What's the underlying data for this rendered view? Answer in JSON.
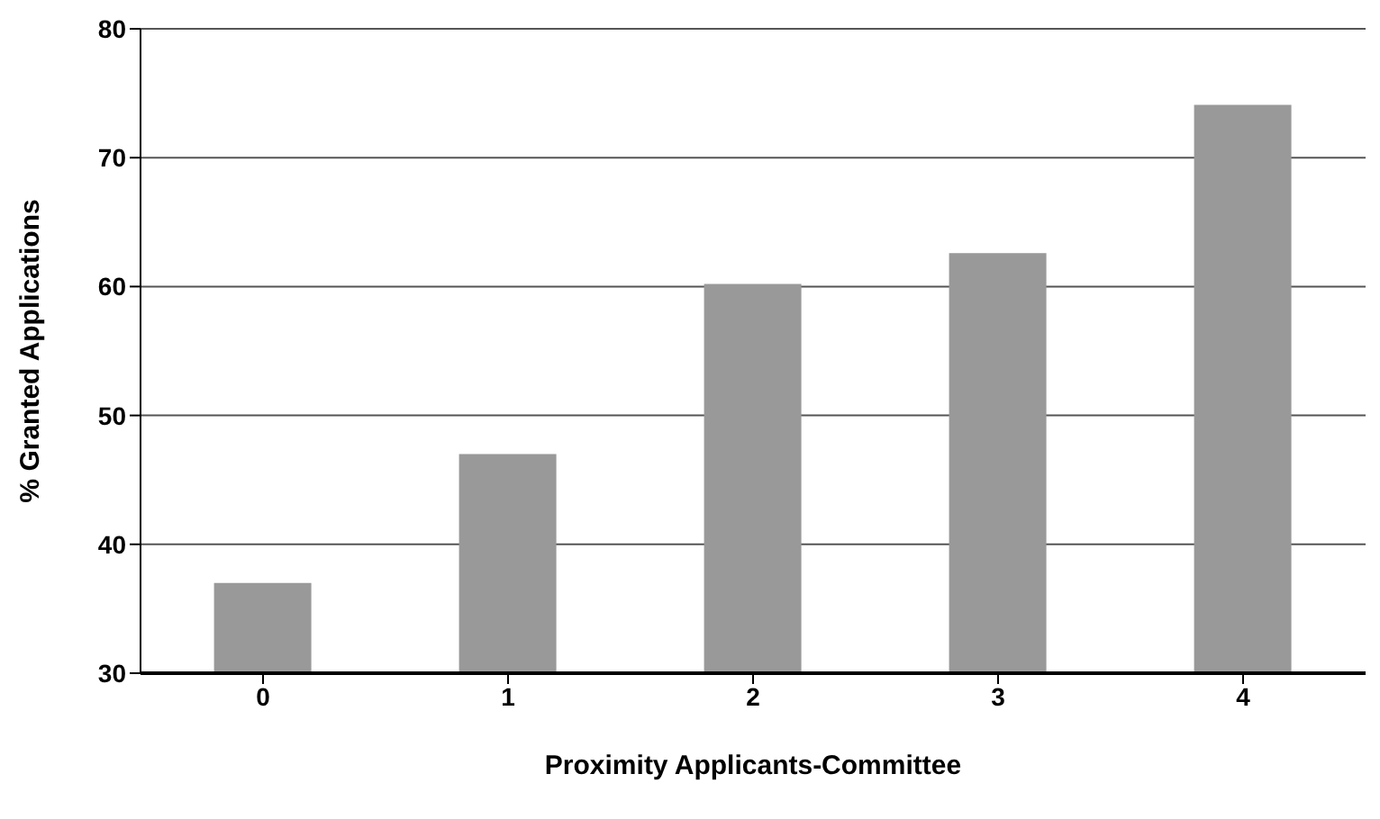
{
  "chart_data": {
    "type": "bar",
    "xlabel": "Proximity Applicants-Committee",
    "ylabel": "% Granted Applications",
    "categories": [
      "0",
      "1",
      "2",
      "3",
      "4"
    ],
    "values": [
      37,
      47,
      60.2,
      62.6,
      74.1
    ],
    "color": "#999999",
    "ylim": [
      30,
      80
    ],
    "yticks": [
      30,
      40,
      50,
      60,
      70,
      80
    ],
    "grid": "y"
  }
}
